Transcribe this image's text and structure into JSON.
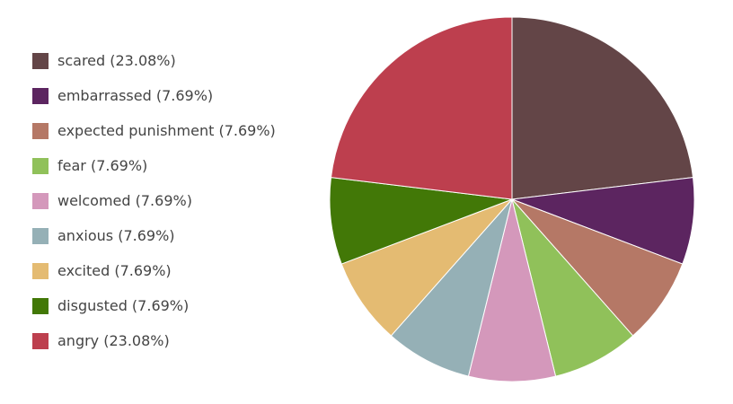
{
  "chart_data": {
    "type": "pie",
    "start_angle_deg": 0,
    "direction": "clockwise",
    "legend_position": "left",
    "slices": [
      {
        "label": "scared",
        "value": 23.08,
        "legend_text": "scared (23.08%)",
        "color": "#634547"
      },
      {
        "label": "embarrassed",
        "value": 7.69,
        "legend_text": "embarrassed (7.69%)",
        "color": "#5c2560"
      },
      {
        "label": "expected punishment",
        "value": 7.69,
        "legend_text": "expected punishment (7.69%)",
        "color": "#b57866"
      },
      {
        "label": "fear",
        "value": 7.69,
        "legend_text": "fear (7.69%)",
        "color": "#90c15a"
      },
      {
        "label": "welcomed",
        "value": 7.69,
        "legend_text": "welcomed (7.69%)",
        "color": "#d498bb"
      },
      {
        "label": "anxious",
        "value": 7.69,
        "legend_text": "anxious (7.69%)",
        "color": "#95b0b6"
      },
      {
        "label": "excited",
        "value": 7.69,
        "legend_text": "excited (7.69%)",
        "color": "#e4bb72"
      },
      {
        "label": "disgusted",
        "value": 7.69,
        "legend_text": "disgusted (7.69%)",
        "color": "#427807"
      },
      {
        "label": "angry",
        "value": 23.08,
        "legend_text": "angry (23.08%)",
        "color": "#bd3f4e"
      }
    ]
  }
}
